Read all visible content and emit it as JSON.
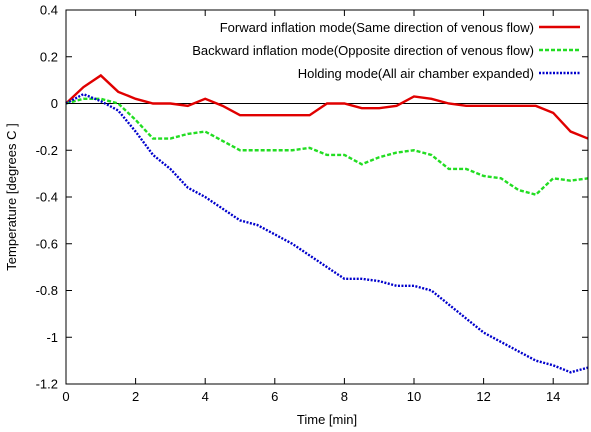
{
  "chart_data": {
    "type": "line",
    "title": "",
    "xlabel": "Time [min]",
    "ylabel": "Temperature [degrees C ]",
    "xlim": [
      0,
      15
    ],
    "ylim": [
      -1.2,
      0.4
    ],
    "xticks": [
      0,
      2,
      4,
      6,
      8,
      10,
      12,
      14
    ],
    "xtick_labels": [
      "0",
      "2",
      "4",
      "6",
      "8",
      "10",
      "12",
      "14"
    ],
    "yticks": [
      0.4,
      0.2,
      0,
      -0.2,
      -0.4,
      -0.6,
      -0.8,
      -1,
      -1.2
    ],
    "ytick_labels": [
      "0.4",
      "0.2",
      "0",
      "-0.2",
      "-0.4",
      "-0.6",
      "-0.8",
      "-1",
      "-1.2"
    ],
    "zero_line": true,
    "grid": false,
    "legend_position": "top-right",
    "series": [
      {
        "name": "Forward inflation mode(Same direction of venous flow)",
        "color": "#e00000",
        "dash": "solid",
        "x": [
          0,
          0.5,
          1,
          1.5,
          2,
          2.5,
          3,
          3.5,
          4,
          4.5,
          5,
          5.5,
          6,
          6.5,
          7,
          7.5,
          8,
          8.5,
          9,
          9.5,
          10,
          10.5,
          11,
          11.5,
          12,
          12.5,
          13,
          13.5,
          14,
          14.5,
          15
        ],
        "values": [
          0.0,
          0.07,
          0.12,
          0.05,
          0.02,
          0.0,
          0.0,
          -0.01,
          0.02,
          -0.01,
          -0.05,
          -0.05,
          -0.05,
          -0.05,
          -0.05,
          0.0,
          0.0,
          -0.02,
          -0.02,
          -0.01,
          0.03,
          0.02,
          0.0,
          -0.01,
          -0.01,
          -0.01,
          -0.01,
          -0.01,
          -0.04,
          -0.12,
          -0.15
        ]
      },
      {
        "name": "Backward inflation mode(Opposite direction of venous flow)",
        "color": "#22dd22",
        "dash": "dashed",
        "x": [
          0,
          0.5,
          1,
          1.5,
          2,
          2.5,
          3,
          3.5,
          4,
          4.5,
          5,
          5.5,
          6,
          6.5,
          7,
          7.5,
          8,
          8.5,
          9,
          9.5,
          10,
          10.5,
          11,
          11.5,
          12,
          12.5,
          13,
          13.5,
          14,
          14.5,
          15
        ],
        "values": [
          0.0,
          0.02,
          0.02,
          0.0,
          -0.07,
          -0.15,
          -0.15,
          -0.13,
          -0.12,
          -0.16,
          -0.2,
          -0.2,
          -0.2,
          -0.2,
          -0.19,
          -0.22,
          -0.22,
          -0.26,
          -0.23,
          -0.21,
          -0.2,
          -0.22,
          -0.28,
          -0.28,
          -0.31,
          -0.32,
          -0.37,
          -0.39,
          -0.32,
          -0.33,
          -0.32
        ]
      },
      {
        "name": "Holding mode(All air chamber expanded)",
        "color": "#0000cc",
        "dash": "dotted",
        "x": [
          0,
          0.5,
          1,
          1.5,
          2,
          2.5,
          3,
          3.5,
          4,
          4.5,
          5,
          5.5,
          6,
          6.5,
          7,
          7.5,
          8,
          8.5,
          9,
          9.5,
          10,
          10.5,
          11,
          11.5,
          12,
          12.5,
          13,
          13.5,
          14,
          14.5,
          15
        ],
        "values": [
          0.0,
          0.04,
          0.01,
          -0.03,
          -0.12,
          -0.22,
          -0.28,
          -0.36,
          -0.4,
          -0.45,
          -0.5,
          -0.52,
          -0.56,
          -0.6,
          -0.65,
          -0.7,
          -0.75,
          -0.75,
          -0.76,
          -0.78,
          -0.78,
          -0.8,
          -0.86,
          -0.92,
          -0.98,
          -1.02,
          -1.06,
          -1.1,
          -1.12,
          -1.15,
          -1.13
        ]
      }
    ]
  }
}
